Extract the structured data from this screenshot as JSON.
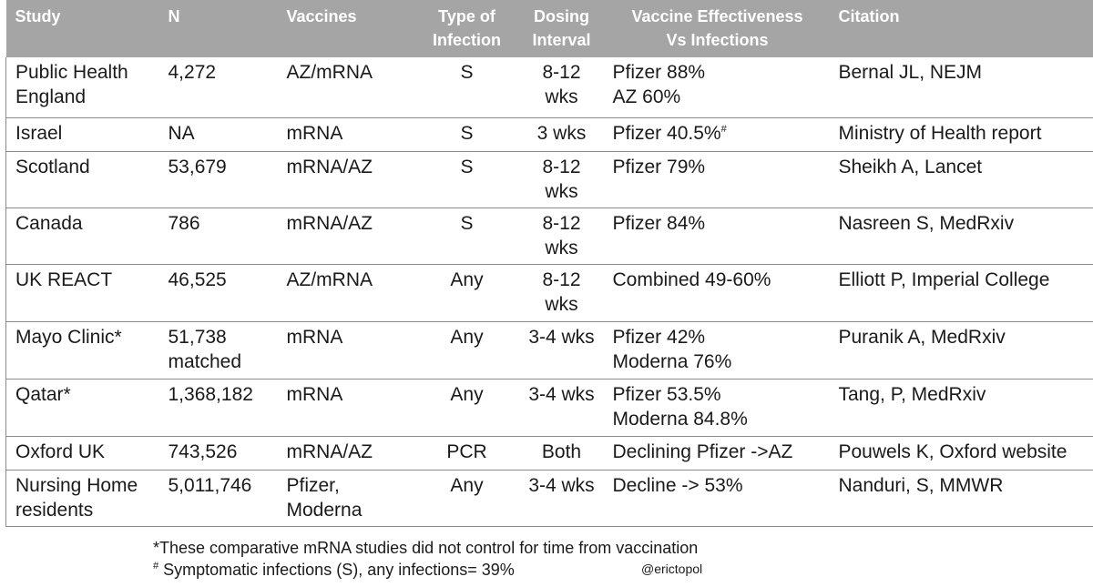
{
  "headers": [
    "Study",
    "N",
    "Vaccines",
    "Type  of\nInfection",
    "Dosing\nInterval",
    "Vaccine Effectiveness\nVs Infections",
    "Citation"
  ],
  "rows": [
    {
      "study": "Public Health\nEngland",
      "n": "4,272",
      "vaccines": "AZ/mRNA",
      "type": "S",
      "interval": "8-12\nwks",
      "effectiveness": "Pfizer 88%\nAZ 60%",
      "eff_mark": "",
      "citation": "Bernal JL, NEJM"
    },
    {
      "study": "Israel",
      "n": "NA",
      "vaccines": "mRNA",
      "type": "S",
      "interval": "3 wks",
      "effectiveness": "Pfizer 40.5%",
      "eff_mark": "#",
      "citation": "Ministry of Health report"
    },
    {
      "study": "Scotland",
      "n": "53,679",
      "vaccines": "mRNA/AZ",
      "type": "S",
      "interval": "8-12\nwks",
      "effectiveness": "Pfizer 79%",
      "eff_mark": "",
      "citation": "Sheikh A, Lancet"
    },
    {
      "study": "Canada",
      "n": "786",
      "vaccines": "mRNA/AZ",
      "type": "S",
      "interval": "8-12\nwks",
      "effectiveness": "Pfizer 84%",
      "eff_mark": "",
      "citation": "Nasreen S, MedRxiv"
    },
    {
      "study": "UK REACT",
      "n": "46,525",
      "vaccines": "AZ/mRNA",
      "type": "Any",
      "interval": "8-12\nwks",
      "effectiveness": "Combined 49-60%",
      "eff_mark": "",
      "citation": "Elliott P, Imperial College"
    },
    {
      "study": "Mayo Clinic*",
      "n": "51,738\nmatched",
      "vaccines": "mRNA",
      "type": "Any",
      "interval": "3-4 wks",
      "effectiveness": "Pfizer 42%\nModerna 76%",
      "eff_mark": "",
      "citation": "Puranik A, MedRxiv"
    },
    {
      "study": "Qatar*",
      "n": "1,368,182",
      "vaccines": "mRNA",
      "type": "Any",
      "interval": "3-4 wks",
      "effectiveness": "Pfizer 53.5%\nModerna 84.8%",
      "eff_mark": "",
      "citation": "Tang, P, MedRxiv"
    },
    {
      "study": "Oxford UK",
      "n": "743,526",
      "vaccines": "mRNA/AZ",
      "type": "PCR",
      "interval": "Both",
      "effectiveness": "Declining Pfizer ->AZ",
      "eff_mark": "",
      "citation": "Pouwels K, Oxford website"
    },
    {
      "study": "Nursing Home\nresidents",
      "n": "5,011,746",
      "vaccines": "Pfizer,\nModerna",
      "type": "Any",
      "interval": "3-4 wks",
      "effectiveness": "Decline -> 53%",
      "eff_mark": "",
      "citation": "Nanduri, S, MMWR"
    }
  ],
  "footnotes": {
    "line1": "*These comparative mRNA studies did not control for time from vaccination",
    "line2_mark": "#",
    "line2": " Symptomatic infections  (S), any infections= 39%"
  },
  "credit": "@erictopol"
}
